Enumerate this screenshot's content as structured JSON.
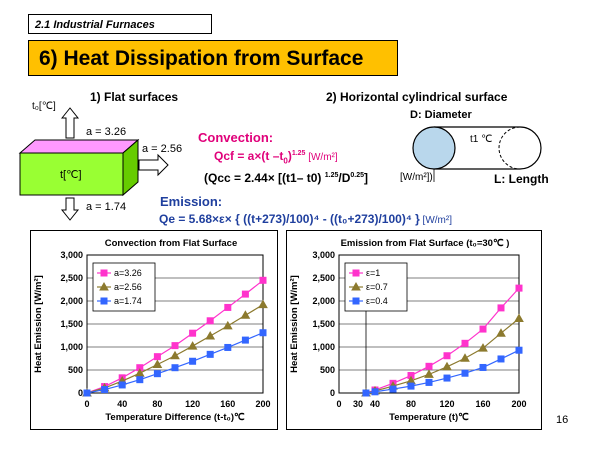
{
  "header": {
    "section": "2.1  Industrial Furnaces",
    "title": "6) Heat Dissipation from Surface"
  },
  "flat": {
    "heading": "1) Flat surfaces",
    "t0_label": "t₀[℃]",
    "t_label": "t[℃]",
    "a_top": "a = 3.26",
    "a_side": "a = 2.56",
    "a_bottom": "a = 1.74"
  },
  "cyl": {
    "heading": "2) Horizontal cylindrical surface",
    "diameter": "D: Diameter",
    "t1": "t1 ℃",
    "length": "L: Length"
  },
  "convection": {
    "label": "Convection:",
    "eq_main": "Qcf = a×(t –t",
    "eq_sub": "0",
    "eq_close": ")",
    "eq_exp": "1.25",
    "eq_unit": " [W/m²]",
    "eq2_main": "(Qcc = 2.44× [(t1– t0) ",
    "eq2_exp1": "1.25",
    "eq2_mid": "/D",
    "eq2_exp2": "0.25",
    "eq2_close": "]",
    "eq2_unit": "[W/m²])"
  },
  "emission": {
    "label": "Emission:",
    "eq": "Qe = 5.68×ε× { ((t+273)/100)⁴ - ((t₀+273)/100)⁴ }",
    "unit": " [W/m²]"
  },
  "page_number": "16",
  "chart_data": [
    {
      "type": "line",
      "title": "Convection from Flat Surface",
      "xlabel": "Temperature Difference (t-t₀)℃",
      "ylabel": "Heat Emission [W/m²]",
      "xlim": [
        0,
        200
      ],
      "ylim": [
        0,
        3000
      ],
      "x_ticks": [
        "0",
        "40",
        "80",
        "120",
        "160",
        "200"
      ],
      "y_ticks": [
        "0",
        "500",
        "1,000",
        "1,500",
        "2,000",
        "2,500",
        "3,000"
      ],
      "legend_position": "top-left",
      "x": [
        0,
        20,
        40,
        60,
        80,
        100,
        120,
        140,
        160,
        180,
        200
      ],
      "series": [
        {
          "name": "a=3.26",
          "color": "#ff33cc",
          "marker": "square",
          "values": [
            0,
            140,
            330,
            550,
            790,
            1030,
            1300,
            1570,
            1860,
            2150,
            2450
          ]
        },
        {
          "name": "a=2.56",
          "color": "#8c7a2e",
          "marker": "triangle",
          "values": [
            0,
            110,
            260,
            430,
            620,
            810,
            1020,
            1240,
            1460,
            1690,
            1920
          ]
        },
        {
          "name": "a=1.74",
          "color": "#3366ff",
          "marker": "square",
          "values": [
            0,
            75,
            175,
            290,
            420,
            550,
            690,
            840,
            990,
            1150,
            1310
          ]
        }
      ]
    },
    {
      "type": "line",
      "title": "Emission from Flat Surface (t₀=30℃ )",
      "xlabel": "Temperature (t)℃",
      "ylabel": "Heat Emission [W/m²]",
      "xlim": [
        0,
        200
      ],
      "ylim": [
        0,
        3000
      ],
      "x_ticks": [
        "0",
        "40",
        "80",
        "120",
        "160",
        "200"
      ],
      "y_ticks": [
        "0",
        "500",
        "1,000",
        "1,500",
        "2,000",
        "2,500",
        "3,000"
      ],
      "extra_tick": "30",
      "legend_position": "top-left",
      "x": [
        30,
        40,
        60,
        80,
        100,
        120,
        140,
        160,
        180,
        200
      ],
      "series": [
        {
          "name": "ε=1",
          "color": "#ff33cc",
          "marker": "square",
          "values": [
            0,
            65,
            210,
            380,
            580,
            810,
            1080,
            1390,
            1850,
            2280
          ]
        },
        {
          "name": "ε=0.7",
          "color": "#8c7a2e",
          "marker": "triangle",
          "values": [
            0,
            45,
            150,
            265,
            405,
            570,
            755,
            975,
            1300,
            1620
          ]
        },
        {
          "name": "ε=0.4",
          "color": "#3366ff",
          "marker": "square",
          "values": [
            0,
            26,
            85,
            150,
            230,
            325,
            430,
            555,
            740,
            930
          ]
        }
      ]
    }
  ]
}
